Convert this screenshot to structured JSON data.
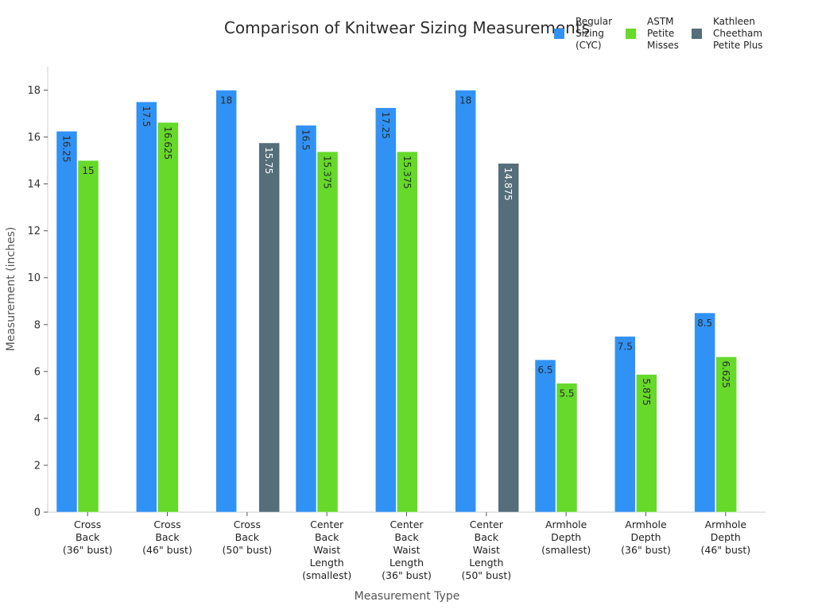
{
  "chart_data": {
    "type": "bar",
    "title": "Comparison of Knitwear Sizing Measurements",
    "xlabel": "Measurement Type",
    "ylabel": "Measurement (inches)",
    "ylim": [
      0,
      19
    ],
    "yticks": [
      0,
      2,
      4,
      6,
      8,
      10,
      12,
      14,
      16,
      18
    ],
    "grid": false,
    "legend_position": "top-right",
    "categories": [
      [
        "Cross",
        "Back",
        "(36\" bust)"
      ],
      [
        "Cross",
        "Back",
        "(46\" bust)"
      ],
      [
        "Cross",
        "Back",
        "(50\" bust)"
      ],
      [
        "Center",
        "Back",
        "Waist",
        "Length",
        "(smallest)"
      ],
      [
        "Center",
        "Back",
        "Waist",
        "Length",
        "(36\" bust)"
      ],
      [
        "Center",
        "Back",
        "Waist",
        "Length",
        "(50\" bust)"
      ],
      [
        "Armhole",
        "Depth",
        "(smallest)"
      ],
      [
        "Armhole",
        "Depth",
        "(36\" bust)"
      ],
      [
        "Armhole",
        "Depth",
        "(46\" bust)"
      ]
    ],
    "series": [
      {
        "name": [
          "Regular",
          "Sizing",
          "(CYC)"
        ],
        "color": "#3192f5",
        "label_color": "#2b2b2b",
        "values": [
          16.25,
          17.5,
          18,
          16.5,
          17.25,
          18,
          6.5,
          7.5,
          8.5
        ],
        "labels": [
          "16.25",
          "17.5",
          "18",
          "16.5",
          "17.25",
          "18",
          "6.5",
          "7.5",
          "8.5"
        ],
        "rotated": [
          true,
          true,
          false,
          true,
          true,
          false,
          false,
          false,
          false
        ]
      },
      {
        "name": [
          "ASTM",
          "Petite",
          "Misses"
        ],
        "color": "#66d92b",
        "label_color": "#2b2b2b",
        "values": [
          15,
          16.625,
          null,
          15.375,
          15.375,
          null,
          5.5,
          5.875,
          6.625
        ],
        "labels": [
          "15",
          "16.625",
          "",
          "15.375",
          "15.375",
          "",
          "5.5",
          "5.875",
          "6.625"
        ],
        "rotated": [
          false,
          true,
          false,
          true,
          true,
          false,
          false,
          true,
          true
        ]
      },
      {
        "name": [
          "Kathleen",
          "Cheetham",
          "Petite Plus"
        ],
        "color": "#546e7a",
        "label_color": "#ffffff",
        "values": [
          null,
          null,
          15.75,
          null,
          null,
          14.875,
          null,
          null,
          null
        ],
        "labels": [
          "",
          "",
          "15.75",
          "",
          "",
          "14.875",
          "",
          "",
          ""
        ],
        "rotated": [
          false,
          false,
          true,
          false,
          false,
          true,
          false,
          false,
          false
        ]
      }
    ]
  }
}
